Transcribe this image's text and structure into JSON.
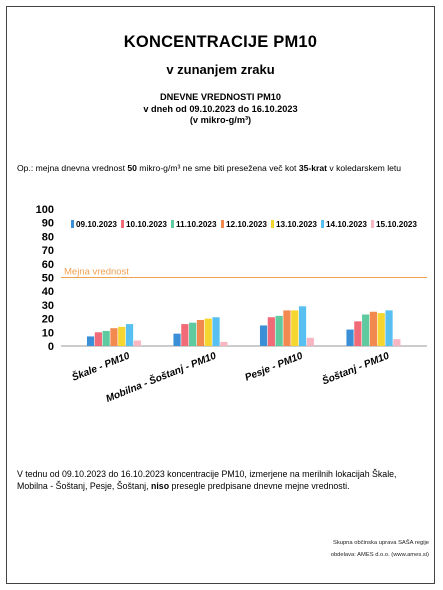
{
  "header": {
    "title": "KONCENTRACIJE PM10",
    "subtitle": "v zunanjem zraku",
    "line1": "DNEVNE VREDNOSTI PM10",
    "line2": "v dneh od 09.10.2023 do 16.10.2023",
    "line3": "(v mikro-g/m³)"
  },
  "note": {
    "prefix": "Op.: mejna dnevna vrednost ",
    "limit_value": "50",
    "mid": " mikro-g/m³ ne sme biti presežena več kot ",
    "times": "35-krat",
    "suffix": " v koledarskem letu"
  },
  "chart_data": {
    "type": "bar",
    "categories": [
      "Škale - PM10",
      "Mobilna - Šoštanj - PM10",
      "Pesje - PM10",
      "Šoštanj - PM10"
    ],
    "series": [
      {
        "name": "09.10.2023",
        "color": "#3a8fd6",
        "values": [
          7,
          9,
          15,
          12
        ]
      },
      {
        "name": "10.10.2023",
        "color": "#f06a77",
        "values": [
          10,
          16,
          21,
          18
        ]
      },
      {
        "name": "11.10.2023",
        "color": "#5fc9a0",
        "values": [
          11,
          17,
          22,
          23
        ]
      },
      {
        "name": "12.10.2023",
        "color": "#f28a50",
        "values": [
          13,
          19,
          26,
          25
        ]
      },
      {
        "name": "13.10.2023",
        "color": "#f5d630",
        "values": [
          14,
          20,
          26,
          24
        ]
      },
      {
        "name": "14.10.2023",
        "color": "#58c0f0",
        "values": [
          16,
          21,
          29,
          26
        ]
      },
      {
        "name": "15.10.2023",
        "color": "#f7b6c2",
        "values": [
          4,
          3,
          6,
          5
        ]
      }
    ],
    "yticks": [
      "0",
      "10",
      "20",
      "30",
      "40",
      "50",
      "60",
      "70",
      "80",
      "90",
      "100"
    ],
    "ylim": [
      0,
      100
    ],
    "limit_line": {
      "value": 50,
      "label": "Mejna vrednost",
      "color": "#f0a050"
    },
    "legend_position": "top",
    "grid": false
  },
  "summary": {
    "text1": "V tednu od 09.10.2023 do 16.10.2023 koncentracije PM10, izmerjene na merilnih lokacijah Škale, Mobilna - Šoštanj, Pesje, Šoštanj, ",
    "bold": "niso",
    "text2": " presegle predpisane dnevne mejne vrednosti."
  },
  "footer": {
    "line1": "Skupna občinska uprava SAŠA regije",
    "line2": "obdelava: AMES d.o.o. (www.ames.si)"
  }
}
